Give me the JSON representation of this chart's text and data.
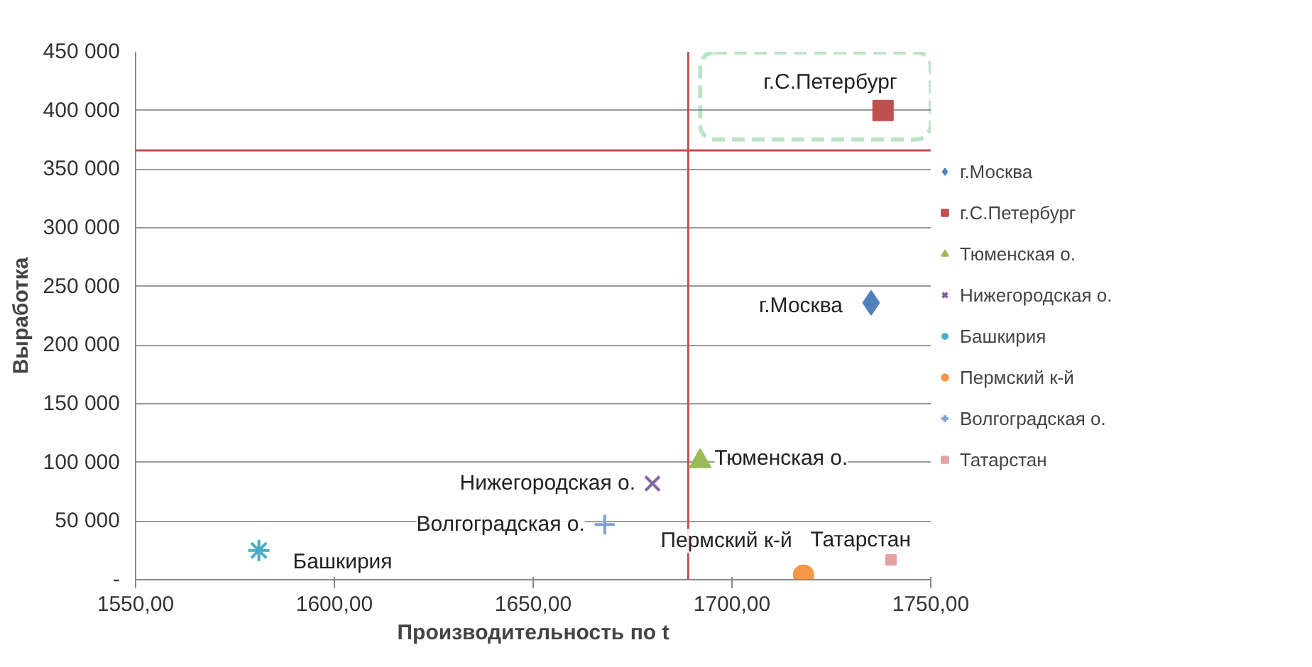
{
  "chart_data": {
    "type": "scatter",
    "xlabel": "Производительность по t",
    "ylabel": "Выработка",
    "xlim": [
      1550,
      1750
    ],
    "ylim": [
      0,
      450000
    ],
    "xticks": [
      {
        "value": 1550,
        "label": "1550,00"
      },
      {
        "value": 1600,
        "label": "1600,00"
      },
      {
        "value": 1650,
        "label": "1650,00"
      },
      {
        "value": 1700,
        "label": "1700,00"
      },
      {
        "value": 1750,
        "label": "1750,00"
      }
    ],
    "yticks": [
      {
        "value": 0,
        "label": "-"
      },
      {
        "value": 50000,
        "label": "50 000"
      },
      {
        "value": 100000,
        "label": "100 000"
      },
      {
        "value": 150000,
        "label": "150 000"
      },
      {
        "value": 200000,
        "label": "200 000"
      },
      {
        "value": 250000,
        "label": "250 000"
      },
      {
        "value": 300000,
        "label": "300 000"
      },
      {
        "value": 350000,
        "label": "350 000"
      },
      {
        "value": 400000,
        "label": "400 000"
      },
      {
        "value": 450000,
        "label": "450 000"
      }
    ],
    "grid": "y",
    "legend": "right",
    "series": [
      {
        "name": "г.Москва",
        "color": "#4f81bd",
        "marker": "diamond",
        "x": [
          1735
        ],
        "values": [
          236000
        ]
      },
      {
        "name": "г.С.Петербург",
        "color": "#c0504d",
        "marker": "square",
        "x": [
          1738
        ],
        "values": [
          400000
        ]
      },
      {
        "name": "Тюменская о.",
        "color": "#9bbb59",
        "marker": "triangle",
        "x": [
          1692
        ],
        "values": [
          101000
        ]
      },
      {
        "name": "Нижегородская о.",
        "color": "#8064a2",
        "marker": "x",
        "x": [
          1680
        ],
        "values": [
          82000
        ]
      },
      {
        "name": "Башкирия",
        "color": "#4bacc6",
        "marker": "cross",
        "x": [
          1581
        ],
        "values": [
          25000
        ]
      },
      {
        "name": "Пермский к-й",
        "color": "#f79646",
        "marker": "circle",
        "x": [
          1718
        ],
        "values": [
          4000
        ]
      },
      {
        "name": "Волгоградская о.",
        "color": "#7f9fd0",
        "marker": "cross",
        "x": [
          1668
        ],
        "values": [
          47000
        ]
      },
      {
        "name": "Татарстан",
        "color": "#e6a0a0",
        "marker": "square",
        "x": [
          1740
        ],
        "values": [
          17000
        ]
      }
    ],
    "ref_lines": [
      {
        "axis": "x",
        "value": 1689,
        "color": "#c0504d"
      },
      {
        "axis": "y",
        "value": 366000,
        "color": "#c0504d"
      }
    ]
  }
}
